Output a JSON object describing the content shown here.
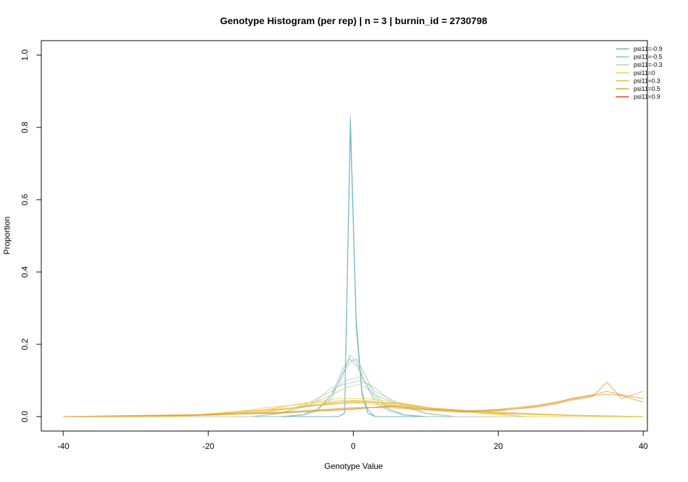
{
  "chart_data": {
    "type": "line",
    "title": "Genotype Histogram (per rep) | n = 3 | burnin_id = 2730798",
    "xlabel": "Genotype Value",
    "ylabel": "Proportion",
    "xlim": [
      -40,
      40
    ],
    "ylim": [
      0,
      1
    ],
    "xticks": [
      "-40",
      "-20",
      "0",
      "20",
      "40"
    ],
    "yticks": [
      "0.0",
      "0.2",
      "0.4",
      "0.6",
      "0.8",
      "1.0"
    ],
    "grid": false,
    "legend_position": "top-right",
    "series": [
      {
        "name": "psi11=-0.9",
        "color": "#6bb3c4",
        "reps": [
          [
            [
              -40,
              0
            ],
            [
              -2,
              0
            ],
            [
              -1.2,
              0.01
            ],
            [
              -0.4,
              0.83
            ],
            [
              0.4,
              0.26
            ],
            [
              1.2,
              0.06
            ],
            [
              2,
              0.01
            ],
            [
              3,
              0
            ],
            [
              40,
              0
            ]
          ],
          [
            [
              -40,
              0
            ],
            [
              -2,
              0
            ],
            [
              -1.2,
              0.01
            ],
            [
              -0.4,
              0.82
            ],
            [
              0.4,
              0.27
            ],
            [
              1.2,
              0.07
            ],
            [
              2,
              0.01
            ],
            [
              3,
              0
            ],
            [
              40,
              0
            ]
          ],
          [
            [
              -40,
              0
            ],
            [
              -2,
              0
            ],
            [
              -1.2,
              0.01
            ],
            [
              -0.4,
              0.8
            ],
            [
              0.4,
              0.25
            ],
            [
              1.2,
              0.06
            ],
            [
              2,
              0.02
            ],
            [
              3,
              0
            ],
            [
              40,
              0
            ]
          ]
        ]
      },
      {
        "name": "psi11=-0.5",
        "color": "#88c4b8",
        "reps": [
          [
            [
              -40,
              0
            ],
            [
              -10,
              0
            ],
            [
              -7,
              0.005
            ],
            [
              -5,
              0.02
            ],
            [
              -3,
              0.06
            ],
            [
              -1.5,
              0.11
            ],
            [
              -0.5,
              0.17
            ],
            [
              0.5,
              0.15
            ],
            [
              1.5,
              0.1
            ],
            [
              3,
              0.05
            ],
            [
              5,
              0.02
            ],
            [
              7,
              0.005
            ],
            [
              10,
              0
            ],
            [
              40,
              0
            ]
          ],
          [
            [
              -40,
              0
            ],
            [
              -10,
              0
            ],
            [
              -7,
              0.005
            ],
            [
              -5,
              0.02
            ],
            [
              -3,
              0.05
            ],
            [
              -1.5,
              0.12
            ],
            [
              -0.5,
              0.15
            ],
            [
              0.5,
              0.16
            ],
            [
              1.5,
              0.12
            ],
            [
              3,
              0.06
            ],
            [
              5,
              0.02
            ],
            [
              7,
              0.005
            ],
            [
              10,
              0
            ],
            [
              40,
              0
            ]
          ],
          [
            [
              -40,
              0
            ],
            [
              -10,
              0
            ],
            [
              -7,
              0.004
            ],
            [
              -5,
              0.015
            ],
            [
              -3,
              0.06
            ],
            [
              -1.5,
              0.13
            ],
            [
              -0.5,
              0.16
            ],
            [
              0.5,
              0.14
            ],
            [
              1.5,
              0.1
            ],
            [
              3,
              0.04
            ],
            [
              5,
              0.015
            ],
            [
              7,
              0.004
            ],
            [
              10,
              0
            ],
            [
              40,
              0
            ]
          ]
        ]
      },
      {
        "name": "psi11=-0.3",
        "color": "#b5ccb0",
        "reps": [
          [
            [
              -40,
              0
            ],
            [
              -14,
              0
            ],
            [
              -10,
              0.01
            ],
            [
              -6,
              0.04
            ],
            [
              -3,
              0.07
            ],
            [
              -1,
              0.1
            ],
            [
              1,
              0.11
            ],
            [
              3,
              0.07
            ],
            [
              6,
              0.04
            ],
            [
              10,
              0.01
            ],
            [
              14,
              0
            ],
            [
              40,
              0
            ]
          ],
          [
            [
              -40,
              0
            ],
            [
              -14,
              0
            ],
            [
              -10,
              0.01
            ],
            [
              -6,
              0.03
            ],
            [
              -3,
              0.08
            ],
            [
              -1,
              0.09
            ],
            [
              1,
              0.1
            ],
            [
              3,
              0.08
            ],
            [
              6,
              0.03
            ],
            [
              10,
              0.01
            ],
            [
              14,
              0
            ],
            [
              40,
              0
            ]
          ],
          [
            [
              -40,
              0
            ],
            [
              -14,
              0
            ],
            [
              -10,
              0.008
            ],
            [
              -6,
              0.035
            ],
            [
              -3,
              0.06
            ],
            [
              -1,
              0.08
            ],
            [
              1,
              0.09
            ],
            [
              3,
              0.06
            ],
            [
              6,
              0.035
            ],
            [
              10,
              0.008
            ],
            [
              14,
              0
            ],
            [
              40,
              0
            ]
          ]
        ]
      },
      {
        "name": "psi11=0",
        "color": "#f0d060",
        "reps": [
          [
            [
              -40,
              0
            ],
            [
              -24,
              0
            ],
            [
              -18,
              0.01
            ],
            [
              -12,
              0.02
            ],
            [
              -6,
              0.04
            ],
            [
              -2,
              0.05
            ],
            [
              2,
              0.05
            ],
            [
              6,
              0.04
            ],
            [
              12,
              0.02
            ],
            [
              18,
              0.01
            ],
            [
              24,
              0
            ],
            [
              40,
              0
            ]
          ],
          [
            [
              -40,
              0
            ],
            [
              -24,
              0
            ],
            [
              -18,
              0.008
            ],
            [
              -12,
              0.025
            ],
            [
              -6,
              0.035
            ],
            [
              -2,
              0.045
            ],
            [
              2,
              0.04
            ],
            [
              6,
              0.035
            ],
            [
              12,
              0.02
            ],
            [
              18,
              0.008
            ],
            [
              24,
              0
            ],
            [
              40,
              0
            ]
          ],
          [
            [
              -40,
              0
            ],
            [
              -24,
              0
            ],
            [
              -18,
              0.012
            ],
            [
              -12,
              0.018
            ],
            [
              -6,
              0.04
            ],
            [
              -2,
              0.04
            ],
            [
              2,
              0.045
            ],
            [
              6,
              0.03
            ],
            [
              12,
              0.022
            ],
            [
              18,
              0.01
            ],
            [
              24,
              0
            ],
            [
              40,
              0
            ]
          ]
        ]
      },
      {
        "name": "psi11=0.3",
        "color": "#e8b838",
        "reps": [
          [
            [
              -40,
              0
            ],
            [
              -28,
              0
            ],
            [
              -20,
              0.005
            ],
            [
              -12,
              0.015
            ],
            [
              -6,
              0.03
            ],
            [
              0,
              0.045
            ],
            [
              6,
              0.035
            ],
            [
              12,
              0.02
            ],
            [
              20,
              0.01
            ],
            [
              30,
              0.003
            ],
            [
              40,
              0
            ]
          ],
          [
            [
              -40,
              0
            ],
            [
              -28,
              0
            ],
            [
              -20,
              0.006
            ],
            [
              -12,
              0.018
            ],
            [
              -6,
              0.028
            ],
            [
              0,
              0.04
            ],
            [
              6,
              0.038
            ],
            [
              12,
              0.018
            ],
            [
              20,
              0.008
            ],
            [
              30,
              0.003
            ],
            [
              40,
              0
            ]
          ],
          [
            [
              -40,
              0
            ],
            [
              -28,
              0
            ],
            [
              -20,
              0.004
            ],
            [
              -12,
              0.012
            ],
            [
              -6,
              0.032
            ],
            [
              0,
              0.038
            ],
            [
              6,
              0.03
            ],
            [
              12,
              0.022
            ],
            [
              20,
              0.012
            ],
            [
              30,
              0.004
            ],
            [
              40,
              0
            ]
          ]
        ]
      },
      {
        "name": "psi11=0.5",
        "color": "#e89a30",
        "reps": [
          [
            [
              -40,
              0
            ],
            [
              -30,
              0.002
            ],
            [
              -20,
              0.005
            ],
            [
              -10,
              0.01
            ],
            [
              0,
              0.02
            ],
            [
              5,
              0.03
            ],
            [
              10,
              0.02
            ],
            [
              15,
              0.015
            ],
            [
              20,
              0.02
            ],
            [
              25,
              0.03
            ],
            [
              28,
              0.04
            ],
            [
              30,
              0.05
            ],
            [
              33,
              0.06
            ],
            [
              35,
              0.07
            ],
            [
              37,
              0.06
            ],
            [
              40,
              0.05
            ]
          ],
          [
            [
              -40,
              0
            ],
            [
              -30,
              0.002
            ],
            [
              -20,
              0.004
            ],
            [
              -10,
              0.012
            ],
            [
              0,
              0.025
            ],
            [
              5,
              0.025
            ],
            [
              10,
              0.018
            ],
            [
              15,
              0.012
            ],
            [
              20,
              0.018
            ],
            [
              25,
              0.025
            ],
            [
              28,
              0.035
            ],
            [
              30,
              0.045
            ],
            [
              33,
              0.055
            ],
            [
              35,
              0.095
            ],
            [
              37,
              0.05
            ],
            [
              40,
              0.07
            ]
          ],
          [
            [
              -40,
              0
            ],
            [
              -30,
              0.003
            ],
            [
              -20,
              0.006
            ],
            [
              -10,
              0.01
            ],
            [
              0,
              0.022
            ],
            [
              5,
              0.028
            ],
            [
              10,
              0.022
            ],
            [
              15,
              0.014
            ],
            [
              20,
              0.016
            ],
            [
              25,
              0.028
            ],
            [
              28,
              0.038
            ],
            [
              30,
              0.048
            ],
            [
              33,
              0.058
            ],
            [
              35,
              0.062
            ],
            [
              37,
              0.058
            ],
            [
              40,
              0.04
            ]
          ]
        ]
      },
      {
        "name": "psi11=0.9",
        "color": "#e03a20",
        "reps": []
      }
    ]
  }
}
